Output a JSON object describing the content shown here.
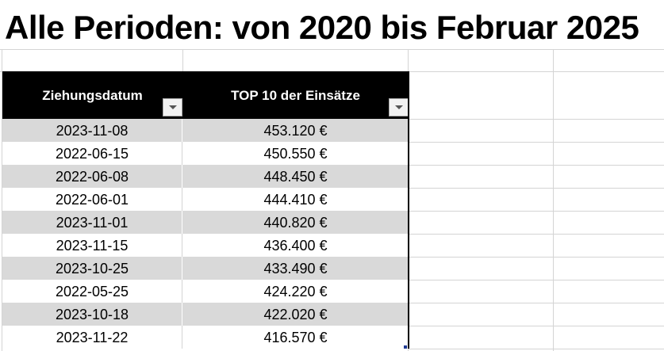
{
  "title": "Alle Perioden: von 2020 bis Februar 2025",
  "table": {
    "headers": {
      "date": "Ziehungsdatum",
      "amount": "TOP 10 der Einsätze"
    },
    "filter_icon": "chevron-down-icon",
    "rows": [
      {
        "date": "2023-11-08",
        "amount": "453.120 €"
      },
      {
        "date": "2022-06-15",
        "amount": "450.550 €"
      },
      {
        "date": "2022-06-08",
        "amount": "448.450 €"
      },
      {
        "date": "2022-06-01",
        "amount": "444.410 €"
      },
      {
        "date": "2023-11-01",
        "amount": "440.820 €"
      },
      {
        "date": "2023-11-15",
        "amount": "436.400 €"
      },
      {
        "date": "2023-10-25",
        "amount": "433.490 €"
      },
      {
        "date": "2022-05-25",
        "amount": "424.220 €"
      },
      {
        "date": "2023-10-18",
        "amount": "422.020 €"
      },
      {
        "date": "2023-11-22",
        "amount": "416.570 €"
      }
    ]
  },
  "colors": {
    "header_bg": "#000000",
    "header_text": "#ffffff",
    "band_shade": "#d9d9d9",
    "gridline": "#d4d4d4"
  }
}
